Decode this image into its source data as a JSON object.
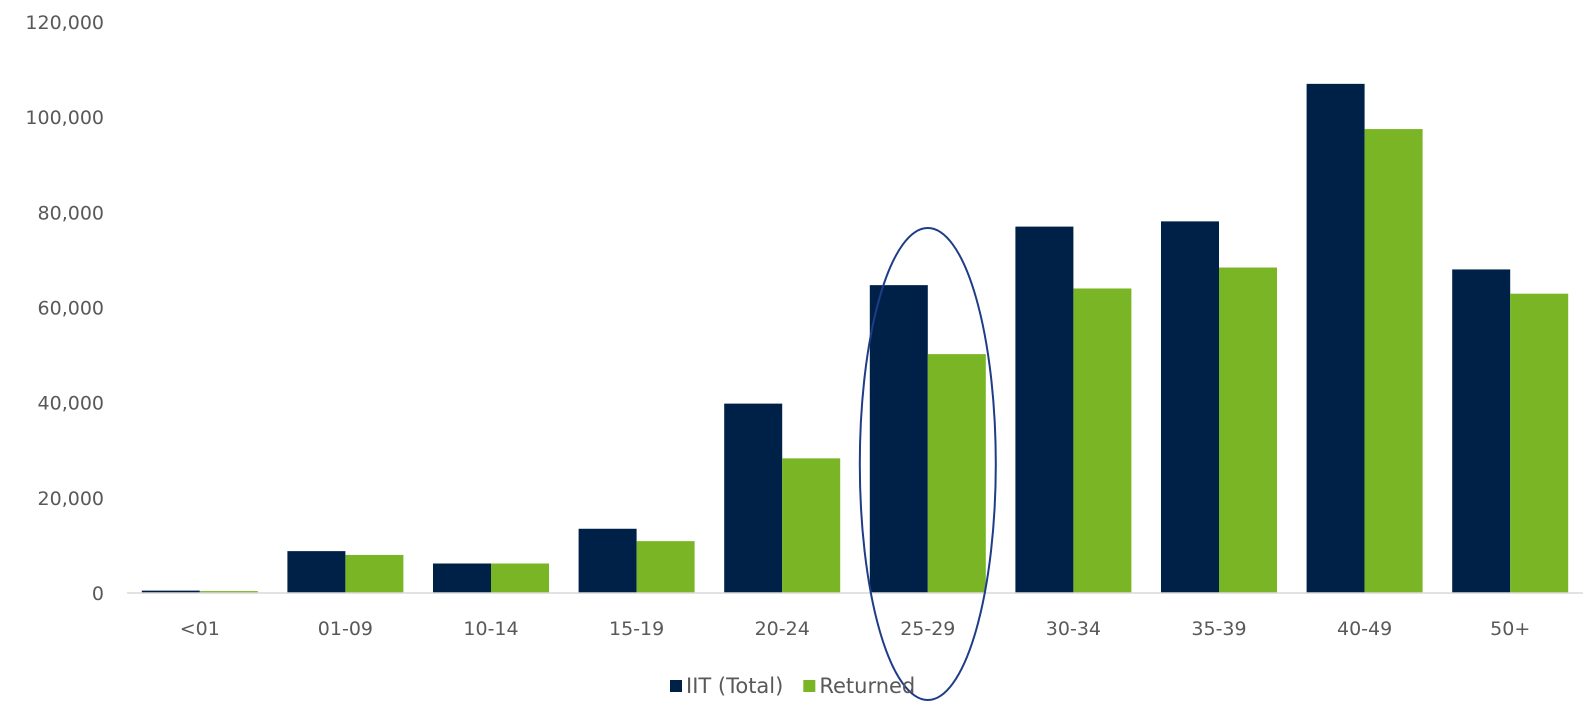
{
  "chart_data": {
    "type": "bar",
    "categories": [
      "<01",
      "01-09",
      "10-14",
      "15-19",
      "20-24",
      "25-29",
      "30-34",
      "35-39",
      "40-49",
      "50+"
    ],
    "series": [
      {
        "name": "IIT (Total)",
        "color": "#002147",
        "values": [
          500,
          8800,
          6200,
          13500,
          39800,
          64700,
          77000,
          78100,
          107000,
          68000
        ]
      },
      {
        "name": "Returned",
        "color": "#7ab526",
        "values": [
          400,
          8000,
          6200,
          10900,
          28300,
          50200,
          64000,
          68400,
          97500,
          62900
        ]
      }
    ],
    "ylim": [
      0,
      120000
    ],
    "yticks": [
      "0",
      "20,000",
      "40,000",
      "60,000",
      "80,000",
      "100,000",
      "120,000"
    ],
    "xlabel": "",
    "ylabel": "",
    "grid": false,
    "legend_position": "bottom",
    "highlight_category": "25-29",
    "highlight_color": "#1f3c88"
  }
}
